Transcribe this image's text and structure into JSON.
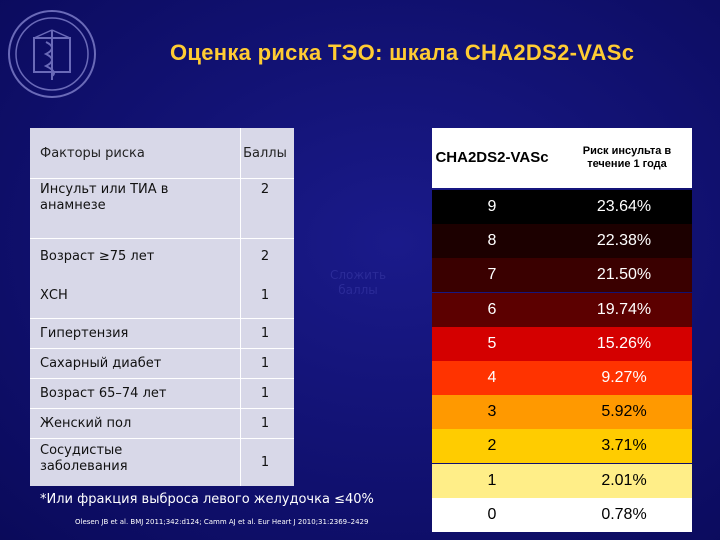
{
  "title": "Оценка риска ТЭО: шкала CHA2DS2-VASc",
  "factors_table": {
    "header": {
      "factor": "Факторы риска",
      "points": "Баллы"
    },
    "rows": [
      {
        "factor": "Инсульт или ТИА в анамнезе",
        "points": "2"
      },
      {
        "factor": "Возраст ≥75 лет",
        "points": "2"
      },
      {
        "factor": "ХСН",
        "points": "1"
      },
      {
        "factor": "Гипертензия",
        "points": "1"
      },
      {
        "factor": "Сахарный диабет",
        "points": "1"
      },
      {
        "factor": "Возраст 65–74 лет",
        "points": "1"
      },
      {
        "factor": "Женский пол",
        "points": "1"
      },
      {
        "factor": "Сосудистые заболевания",
        "points": "1"
      }
    ]
  },
  "summary_label": "Сложить баллы",
  "risk_table": {
    "header": {
      "score": "CHA2DS2-VASc",
      "risk": "Риск инсульта в течение 1 года"
    },
    "rows": [
      {
        "score": "9",
        "risk": "23.64%",
        "bg": "#000000",
        "fg": "#ffffff"
      },
      {
        "score": "8",
        "risk": "22.38%",
        "bg": "#1c0000",
        "fg": "#ffffff"
      },
      {
        "score": "7",
        "risk": "21.50%",
        "bg": "#3a0000",
        "fg": "#ffffff"
      },
      {
        "score": "6",
        "risk": "19.74%",
        "bg": "#5c0000",
        "fg": "#ffffff"
      },
      {
        "score": "5",
        "risk": "15.26%",
        "bg": "#d40000",
        "fg": "#ffffff"
      },
      {
        "score": "4",
        "risk": "9.27%",
        "bg": "#ff3300",
        "fg": "#ffffff"
      },
      {
        "score": "3",
        "risk": "5.92%",
        "bg": "#ff9900",
        "fg": "#000000"
      },
      {
        "score": "2",
        "risk": "3.71%",
        "bg": "#ffcc00",
        "fg": "#000000"
      },
      {
        "score": "1",
        "risk": "2.01%",
        "bg": "#ffee88",
        "fg": "#000000"
      },
      {
        "score": "0",
        "risk": "0.78%",
        "bg": "#ffffff",
        "fg": "#000000"
      }
    ]
  },
  "footnote": "*Или фракция выброса левого желудочка ≤40%",
  "references": "Olesen JB et al. BMJ 2011;342:d124; Camm AJ et al. Eur Heart J 2010;31:2369–2429",
  "colors": {
    "background": "#10106e",
    "title": "#ffcc33",
    "factors_table": "#d8d8e8"
  },
  "icons": {
    "emblem": "medical-emblem"
  }
}
